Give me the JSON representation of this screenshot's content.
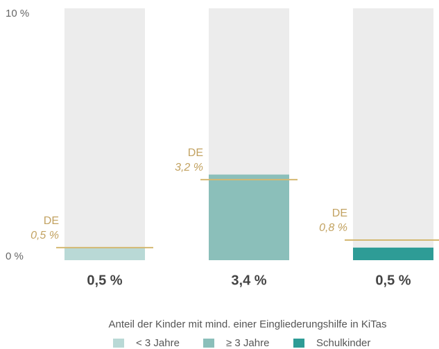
{
  "chart_data": {
    "type": "bar",
    "xlabel": "Anteil der Kinder mit mind. einer Eingliederungshilfe in KiTas",
    "series": [
      {
        "name": "< 3 Jahre",
        "color": "#b9d9d6",
        "values": [
          0.5
        ],
        "value_labels": [
          "0,5 %"
        ]
      },
      {
        "name": "≥ 3 Jahre",
        "color": "#8bbfba",
        "values": [
          3.4
        ],
        "value_labels": [
          "3,4 %"
        ]
      },
      {
        "name": "Schulkinder",
        "color": "#2e9c96",
        "values": [
          0.5
        ],
        "value_labels": [
          "0,5 %"
        ]
      }
    ],
    "reference_lines": [
      {
        "label": "DE",
        "value": 0.5,
        "value_label": "0,5 %"
      },
      {
        "label": "DE",
        "value": 3.2,
        "value_label": "3,2 %"
      },
      {
        "label": "DE",
        "value": 0.8,
        "value_label": "0,8 %"
      }
    ],
    "reference_color": "#d4b871",
    "background_bar_color": "#ececec",
    "ylim": [
      0,
      10
    ],
    "yticks": [
      {
        "value": 10,
        "label": "10 %"
      },
      {
        "value": 0,
        "label": "0 %"
      }
    ]
  }
}
